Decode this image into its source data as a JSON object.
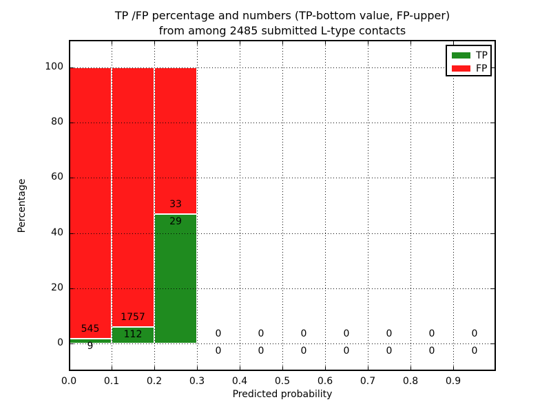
{
  "chart_data": {
    "type": "bar",
    "stacked": true,
    "title_line1": "TP /FP percentage and numbers (TP-bottom value, FP-upper)",
    "title_line2": "from among 2485 submitted L-type contacts",
    "xlabel": "Predicted probability",
    "ylabel": "Percentage",
    "bin_width": 0.1,
    "bins": [
      {
        "x_start": 0.0,
        "tp": 9,
        "fp": 545
      },
      {
        "x_start": 0.1,
        "tp": 112,
        "fp": 1757
      },
      {
        "x_start": 0.2,
        "tp": 29,
        "fp": 33
      },
      {
        "x_start": 0.3,
        "tp": 0,
        "fp": 0
      },
      {
        "x_start": 0.4,
        "tp": 0,
        "fp": 0
      },
      {
        "x_start": 0.5,
        "tp": 0,
        "fp": 0
      },
      {
        "x_start": 0.6,
        "tp": 0,
        "fp": 0
      },
      {
        "x_start": 0.7,
        "tp": 0,
        "fp": 0
      },
      {
        "x_start": 0.8,
        "tp": 0,
        "fp": 0
      },
      {
        "x_start": 0.9,
        "tp": 0,
        "fp": 0
      }
    ],
    "x_ticks": [
      "0.0",
      "0.1",
      "0.2",
      "0.3",
      "0.4",
      "0.5",
      "0.6",
      "0.7",
      "0.8",
      "0.9"
    ],
    "y_ticks": [
      "0",
      "20",
      "40",
      "60",
      "80",
      "100"
    ],
    "xlim": [
      0.0,
      1.0
    ],
    "ylim": [
      -10,
      110
    ],
    "grid": "dotted",
    "legend": [
      {
        "label": "TP",
        "color": "#1f8b1f"
      },
      {
        "label": "FP",
        "color": "#ff1a1a"
      }
    ],
    "colors": {
      "tp": "#1f8b1f",
      "fp": "#ff1a1a",
      "grid": "#000000",
      "frame": "#000000"
    }
  }
}
